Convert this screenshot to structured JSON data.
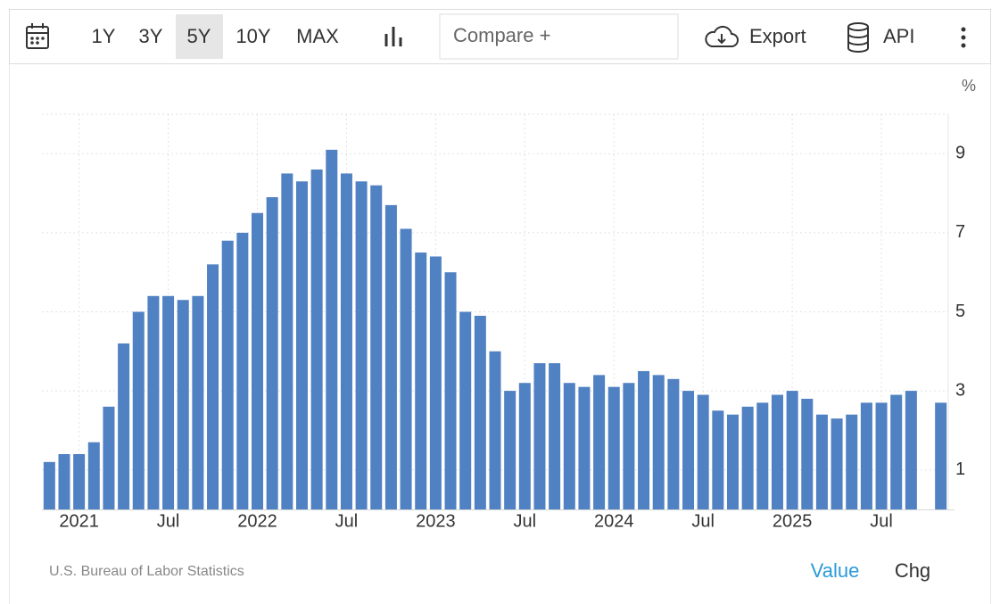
{
  "toolbar": {
    "ranges": [
      "1Y",
      "3Y",
      "5Y",
      "10Y",
      "MAX"
    ],
    "selected_range": "5Y",
    "compare": "Compare +",
    "export": "Export",
    "api": "API"
  },
  "chart_data": {
    "type": "bar",
    "unit": "%",
    "source": "U.S. Bureau of Labor Statistics",
    "categories": [
      null,
      null,
      "2021",
      null,
      null,
      null,
      null,
      null,
      "Jul",
      null,
      null,
      null,
      null,
      null,
      "2022",
      null,
      null,
      null,
      null,
      null,
      "Jul",
      null,
      null,
      null,
      null,
      null,
      "2023",
      null,
      null,
      null,
      null,
      null,
      "Jul",
      null,
      null,
      null,
      null,
      null,
      "2024",
      null,
      null,
      null,
      null,
      null,
      "Jul",
      null,
      null,
      null,
      null,
      null,
      "2025",
      null,
      null,
      null,
      null,
      null,
      "Jul",
      null,
      null,
      null,
      null
    ],
    "values": [
      1.2,
      1.4,
      1.4,
      1.7,
      2.6,
      4.2,
      5.0,
      5.4,
      5.4,
      5.3,
      5.4,
      6.2,
      6.8,
      7.0,
      7.5,
      7.9,
      8.5,
      8.3,
      8.6,
      9.1,
      8.5,
      8.3,
      8.2,
      7.7,
      7.1,
      6.5,
      6.4,
      6.0,
      5.0,
      4.9,
      4.0,
      3.0,
      3.2,
      3.7,
      3.7,
      3.2,
      3.1,
      3.4,
      3.1,
      3.2,
      3.5,
      3.4,
      3.3,
      3.0,
      2.9,
      2.5,
      2.4,
      2.6,
      2.7,
      2.9,
      3.0,
      2.8,
      2.4,
      2.3,
      2.4,
      2.7,
      2.7,
      2.9,
      3.0,
      null,
      2.7
    ],
    "color": "#5081c2",
    "ylim": [
      0,
      10
    ],
    "yticks": [
      1,
      3,
      5,
      7,
      9
    ],
    "grid": true
  },
  "view_toggle": [
    "Value",
    "Chg"
  ],
  "active_view": "Value"
}
